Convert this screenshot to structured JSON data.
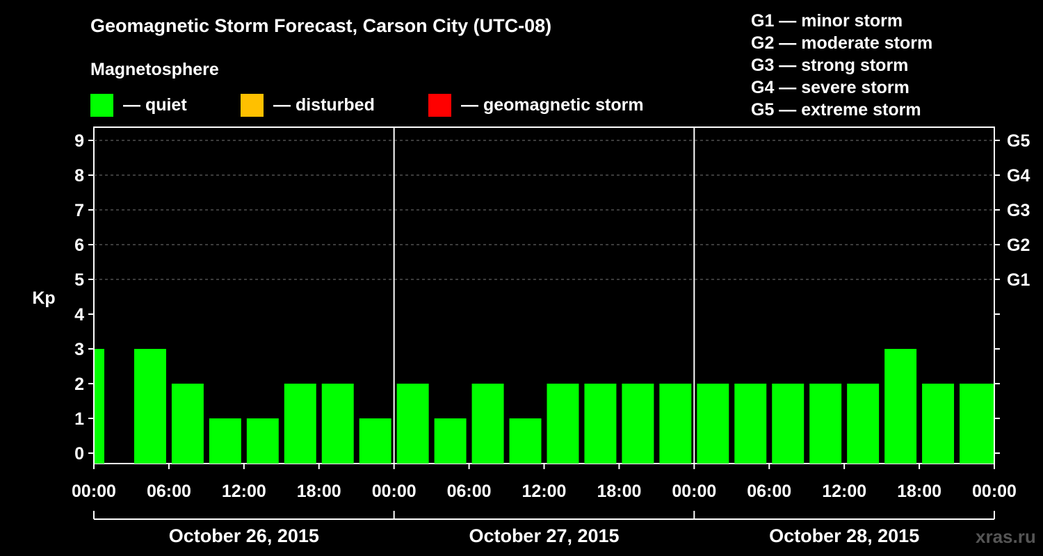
{
  "header": {
    "title": "Geomagnetic Storm Forecast, Carson City (UTC-08)",
    "subtitle": "Magnetosphere"
  },
  "legend": [
    {
      "label": "— quiet",
      "color": "#00ff00"
    },
    {
      "label": "— disturbed",
      "color": "#ffc000"
    },
    {
      "label": "— geomagnetic storm",
      "color": "#ff0000"
    }
  ],
  "storm_levels": [
    "G1 — minor storm",
    "G2 — moderate storm",
    "G3 — strong storm",
    "G4 — severe storm",
    "G5 — extreme storm"
  ],
  "watermark": "xras.ru",
  "chart_data": {
    "type": "bar",
    "title": "Geomagnetic Storm Forecast, Carson City (UTC-08)",
    "ylabel": "Kp",
    "ylim": [
      0,
      9
    ],
    "yticks": [
      "0",
      "1",
      "2",
      "3",
      "4",
      "5",
      "6",
      "7",
      "8",
      "9"
    ],
    "right_axis_labels": [
      {
        "kp": 5,
        "label": "G1"
      },
      {
        "kp": 6,
        "label": "G2"
      },
      {
        "kp": 7,
        "label": "G3"
      },
      {
        "kp": 8,
        "label": "G4"
      },
      {
        "kp": 9,
        "label": "G5"
      }
    ],
    "xtick_labels": [
      "00:00",
      "06:00",
      "12:00",
      "18:00",
      "00:00",
      "06:00",
      "12:00",
      "18:00",
      "00:00",
      "06:00",
      "12:00",
      "18:00",
      "00:00"
    ],
    "days": [
      "October 26, 2015",
      "October 27, 2015",
      "October 28, 2015"
    ],
    "bar_interval_hours": 3,
    "series": [
      {
        "values": [
          3,
          3,
          2,
          1,
          1,
          2,
          2,
          1,
          2,
          1,
          2,
          1,
          2,
          2,
          2,
          2,
          2,
          2,
          2,
          2,
          2,
          3,
          2,
          2
        ],
        "color": "#00ff00"
      }
    ],
    "grid": "dashed horizontal at Kp 5–9",
    "legend_position": "top"
  }
}
